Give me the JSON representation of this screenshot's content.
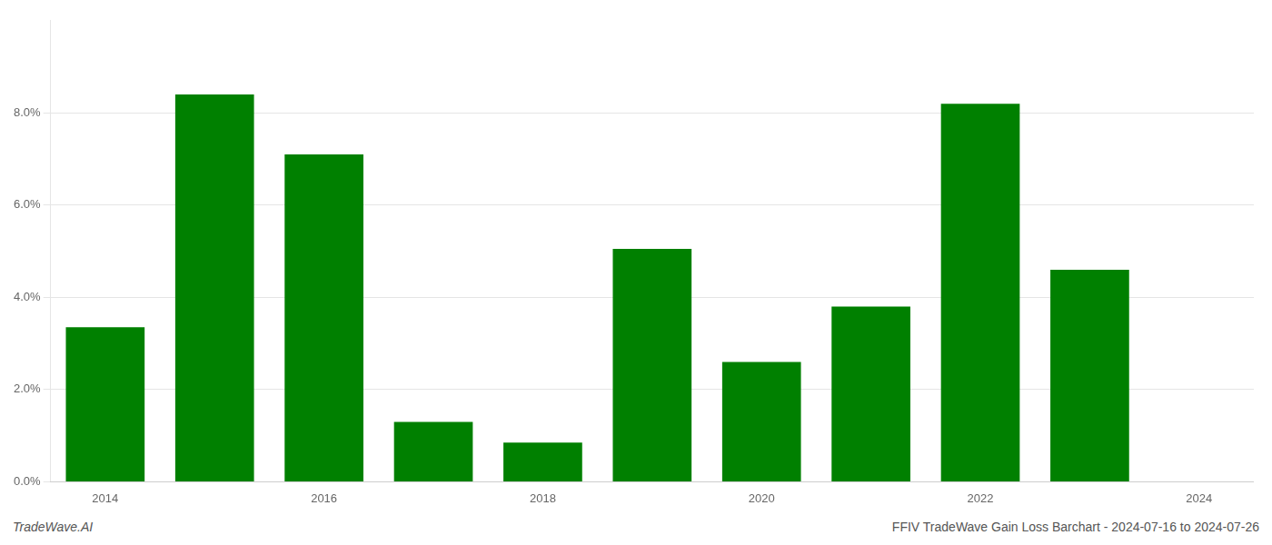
{
  "chart_data": {
    "type": "bar",
    "x": [
      2014,
      2015,
      2016,
      2017,
      2018,
      2019,
      2020,
      2021,
      2022,
      2023
    ],
    "values": [
      0.0335,
      0.084,
      0.071,
      0.013,
      0.0085,
      0.0505,
      0.026,
      0.038,
      0.082,
      0.046
    ],
    "color": "#008000",
    "xlim": [
      2013.5,
      2024.5
    ],
    "xticks": [
      2014,
      2016,
      2018,
      2020,
      2022,
      2024
    ],
    "ylim": [
      0,
      0.1
    ],
    "yticks": [
      {
        "value": 0.0,
        "label": "0.0%"
      },
      {
        "value": 0.02,
        "label": "2.0%"
      },
      {
        "value": 0.04,
        "label": "4.0%"
      },
      {
        "value": 0.06,
        "label": "6.0%"
      },
      {
        "value": 0.08,
        "label": "8.0%"
      }
    ],
    "grid": true,
    "annotations": [
      "TradeWave.AI",
      "FFIV TradeWave Gain Loss Barchart - 2024-07-16 to 2024-07-26"
    ]
  }
}
